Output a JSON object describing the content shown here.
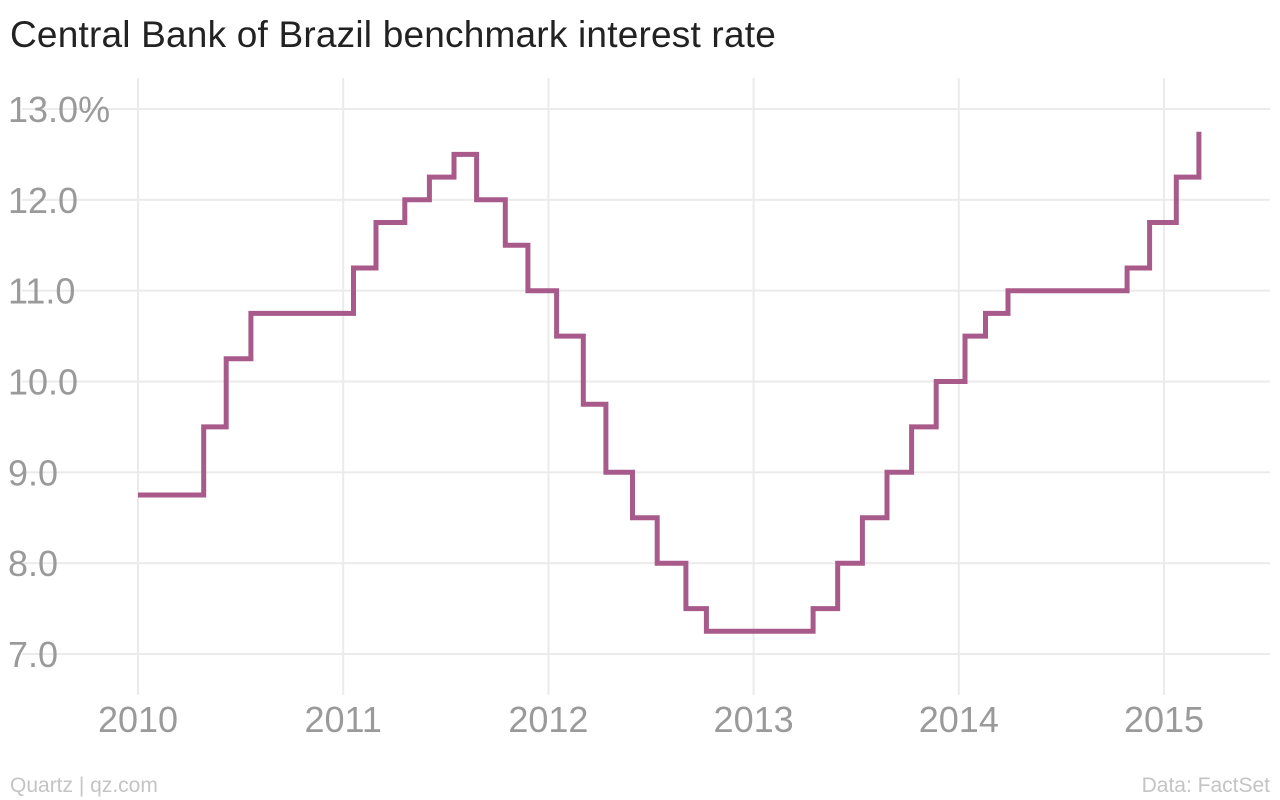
{
  "title": "Central Bank of Brazil benchmark interest rate",
  "footer": {
    "source_left": "Quartz | qz.com",
    "source_right": "Data: FactSet"
  },
  "colors": {
    "line": "#a85a8a",
    "grid": "#ebebeb",
    "tick_text": "#9a9a9a",
    "title_text": "#222222",
    "footer_text": "#c4c4c4"
  },
  "chart_data": {
    "type": "line",
    "step": true,
    "title": "Central Bank of Brazil benchmark interest rate",
    "xlabel": "",
    "ylabel": "",
    "xlim": [
      2010.0,
      2015.35
    ],
    "ylim": [
      7.0,
      13.0
    ],
    "grid": true,
    "y_ticks": [
      7,
      8,
      9,
      10,
      11,
      12,
      13
    ],
    "y_tick_labels": [
      "7.0",
      "8.0",
      "9.0",
      "10.0",
      "11.0",
      "12.0",
      "13.0%"
    ],
    "x_ticks": [
      2010,
      2011,
      2012,
      2013,
      2014,
      2015
    ],
    "x_tick_labels": [
      "2010",
      "2011",
      "2012",
      "2013",
      "2014",
      "2015"
    ],
    "series": [
      {
        "x": [
          2010.0,
          2010.32,
          2010.43,
          2010.55,
          2011.05,
          2011.16,
          2011.3,
          2011.42,
          2011.54,
          2011.65,
          2011.79,
          2011.9,
          2012.04,
          2012.17,
          2012.28,
          2012.41,
          2012.53,
          2012.67,
          2012.77,
          2013.29,
          2013.41,
          2013.53,
          2013.65,
          2013.77,
          2013.89,
          2014.03,
          2014.13,
          2014.24,
          2014.82,
          2014.93,
          2015.06,
          2015.17
        ],
        "y": [
          8.75,
          9.5,
          10.25,
          10.75,
          11.25,
          11.75,
          12.0,
          12.25,
          12.5,
          12.0,
          11.5,
          11.0,
          10.5,
          9.75,
          9.0,
          8.5,
          8.0,
          7.5,
          7.25,
          7.5,
          8.0,
          8.5,
          9.0,
          9.5,
          10.0,
          10.5,
          10.75,
          11.0,
          11.25,
          11.75,
          12.25,
          12.75
        ]
      }
    ]
  }
}
